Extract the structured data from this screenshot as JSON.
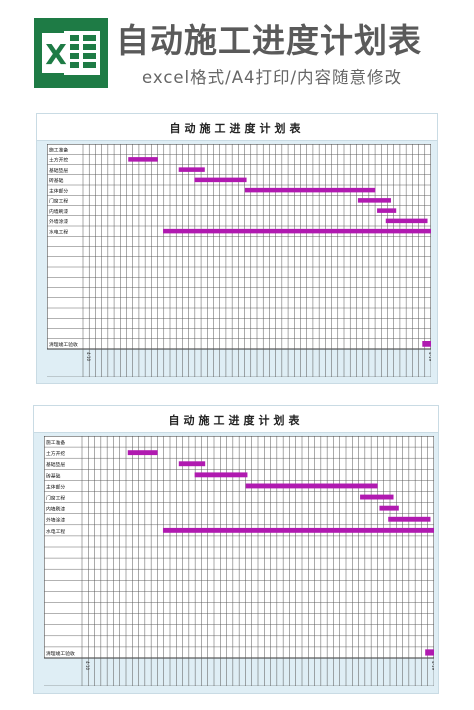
{
  "header": {
    "title": "自动施工进度计划表",
    "subtitle": "excel格式/A4打印/内容随意修改",
    "logo_letter": "X"
  },
  "sheets": [
    {
      "title": "自动施工进度计划表"
    },
    {
      "title": "自动施工进度计划表"
    }
  ],
  "tasks": [
    "施工准备",
    "土方开挖",
    "基础垫层",
    "砖基础",
    "主体部分",
    "门窗工程",
    "内墙刷漆",
    "外墙涂漆",
    "水电工程"
  ],
  "final_task": "清理竣工验收",
  "colors": {
    "bar": "#b01ab0",
    "logo_green": "#1e7b45",
    "sheet_bg": "#dfeef5",
    "grid": "#444444"
  },
  "date_axis": {
    "first": "4-10",
    "last": "4-19"
  }
}
